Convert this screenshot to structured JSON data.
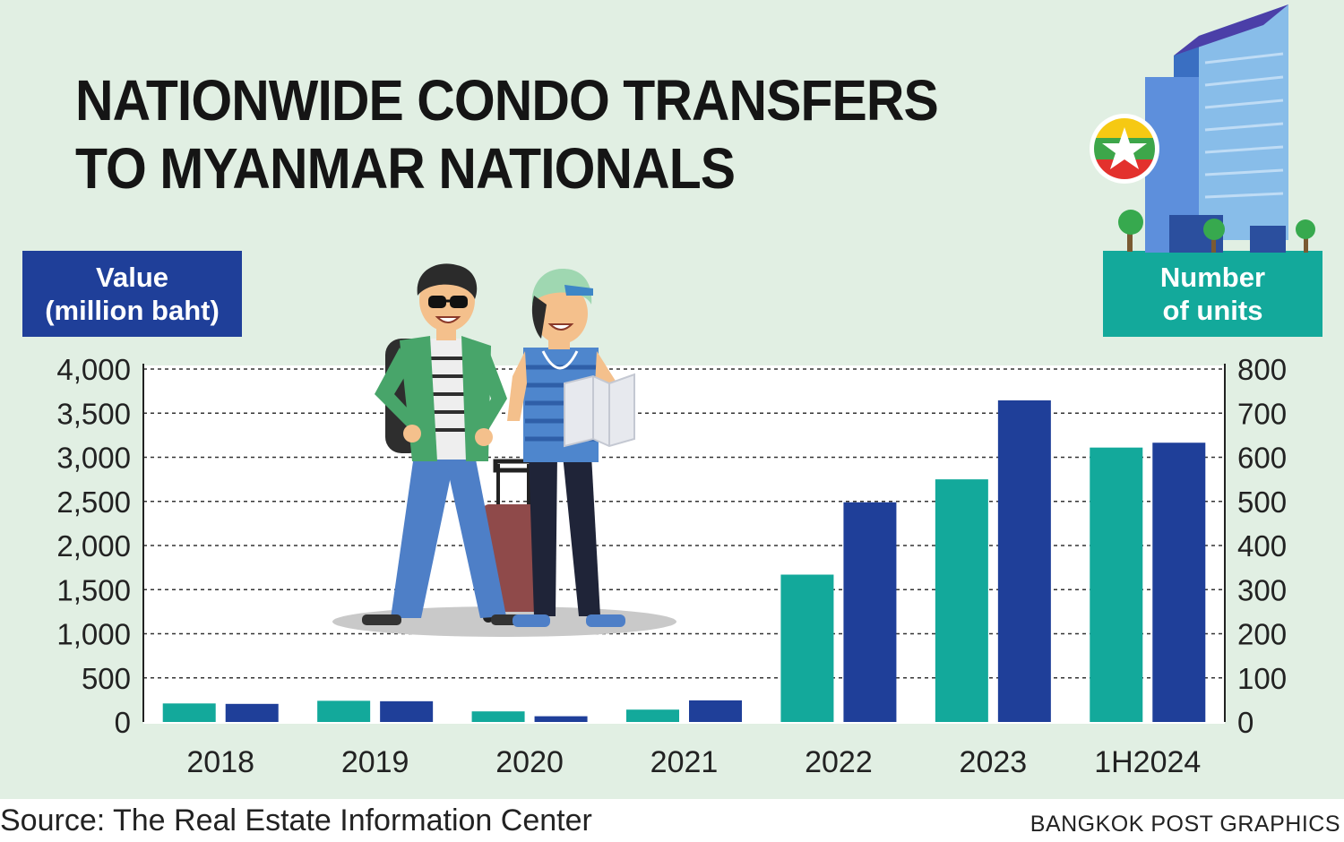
{
  "title_lines": [
    "NATIONWIDE CONDO TRANSFERS",
    "TO MYANMAR NATIONALS"
  ],
  "left_axis_label": [
    "Value",
    "(million baht)"
  ],
  "right_axis_label": [
    "Number",
    "of units"
  ],
  "source": "Source: The Real Estate Information Center",
  "credit": "BANGKOK POST GRAPHICS",
  "colors": {
    "value_series": "#13a99b",
    "units_series": "#1f3f99",
    "panel_background": "#e1efe3"
  },
  "illustrations": [
    "tourists-illustration",
    "building-with-myanmar-flag-illustration"
  ],
  "chart_data": {
    "type": "bar",
    "categories": [
      "2018",
      "2019",
      "2020",
      "2021",
      "2022",
      "2023",
      "1H2024"
    ],
    "series": [
      {
        "axis": "left",
        "color": "#13a99b",
        "values": [
          210,
          240,
          120,
          140,
          1670,
          2750,
          3110
        ]
      },
      {
        "axis": "right",
        "color": "#1f3f99",
        "values": [
          41,
          47,
          13,
          49,
          498,
          729,
          633
        ]
      }
    ],
    "y_left": {
      "label": "Value (million baht)",
      "ylim": [
        0,
        4000
      ],
      "ticks": [
        "0",
        "500",
        "1,000",
        "1,500",
        "2,000",
        "2,500",
        "3,000",
        "3,500",
        "4,000"
      ]
    },
    "y_right": {
      "label": "Number of units",
      "ylim": [
        0,
        800
      ],
      "ticks": [
        "0",
        "100",
        "200",
        "300",
        "400",
        "500",
        "600",
        "700",
        "800"
      ]
    },
    "grid": "dotted horizontal"
  }
}
